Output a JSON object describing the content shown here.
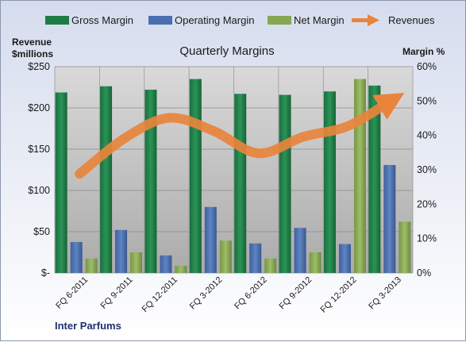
{
  "chart_data": {
    "type": "bar",
    "title": "Quarterly Margins",
    "company": "Inter Parfums",
    "y_left_label_line1": "Revenue",
    "y_left_label_line2": "$millions",
    "y_right_label": "Margin %",
    "y_left_lim": [
      0,
      250
    ],
    "y_right_lim": [
      0,
      60
    ],
    "y_left_ticks": [
      "$-",
      "$50",
      "$100",
      "$150",
      "$200",
      "$250"
    ],
    "y_right_ticks": [
      "0%",
      "10%",
      "20%",
      "30%",
      "40%",
      "50%",
      "60%"
    ],
    "grid": true,
    "legend_position": "top",
    "categories": [
      "FQ 6-2011",
      "FQ 9-2011",
      "FQ 12-2011",
      "FQ 3-2012",
      "FQ 6-2012",
      "FQ 9-2012",
      "FQ 12-2012",
      "FQ 3-2013"
    ],
    "series": [
      {
        "name": "Gross Margin",
        "kind": "bar",
        "axis": "right",
        "color": "#1e7b45",
        "values": [
          52.5,
          54.3,
          53.3,
          56.4,
          52.1,
          51.8,
          52.8,
          54.5
        ]
      },
      {
        "name": "Operating Margin",
        "kind": "bar",
        "axis": "right",
        "color": "#4a6fae",
        "values": [
          9.0,
          12.5,
          5.1,
          19.2,
          8.6,
          13.1,
          8.4,
          31.4
        ]
      },
      {
        "name": "Net Margin",
        "kind": "bar",
        "axis": "right",
        "color": "#86a652",
        "values": [
          4.2,
          6.0,
          2.1,
          9.4,
          4.2,
          6.0,
          56.4,
          14.9
        ]
      },
      {
        "name": "Revenues",
        "kind": "line",
        "axis": "left",
        "color": "#e8843c",
        "values": [
          120,
          163,
          188,
          172,
          145,
          165,
          178,
          210
        ]
      }
    ]
  }
}
